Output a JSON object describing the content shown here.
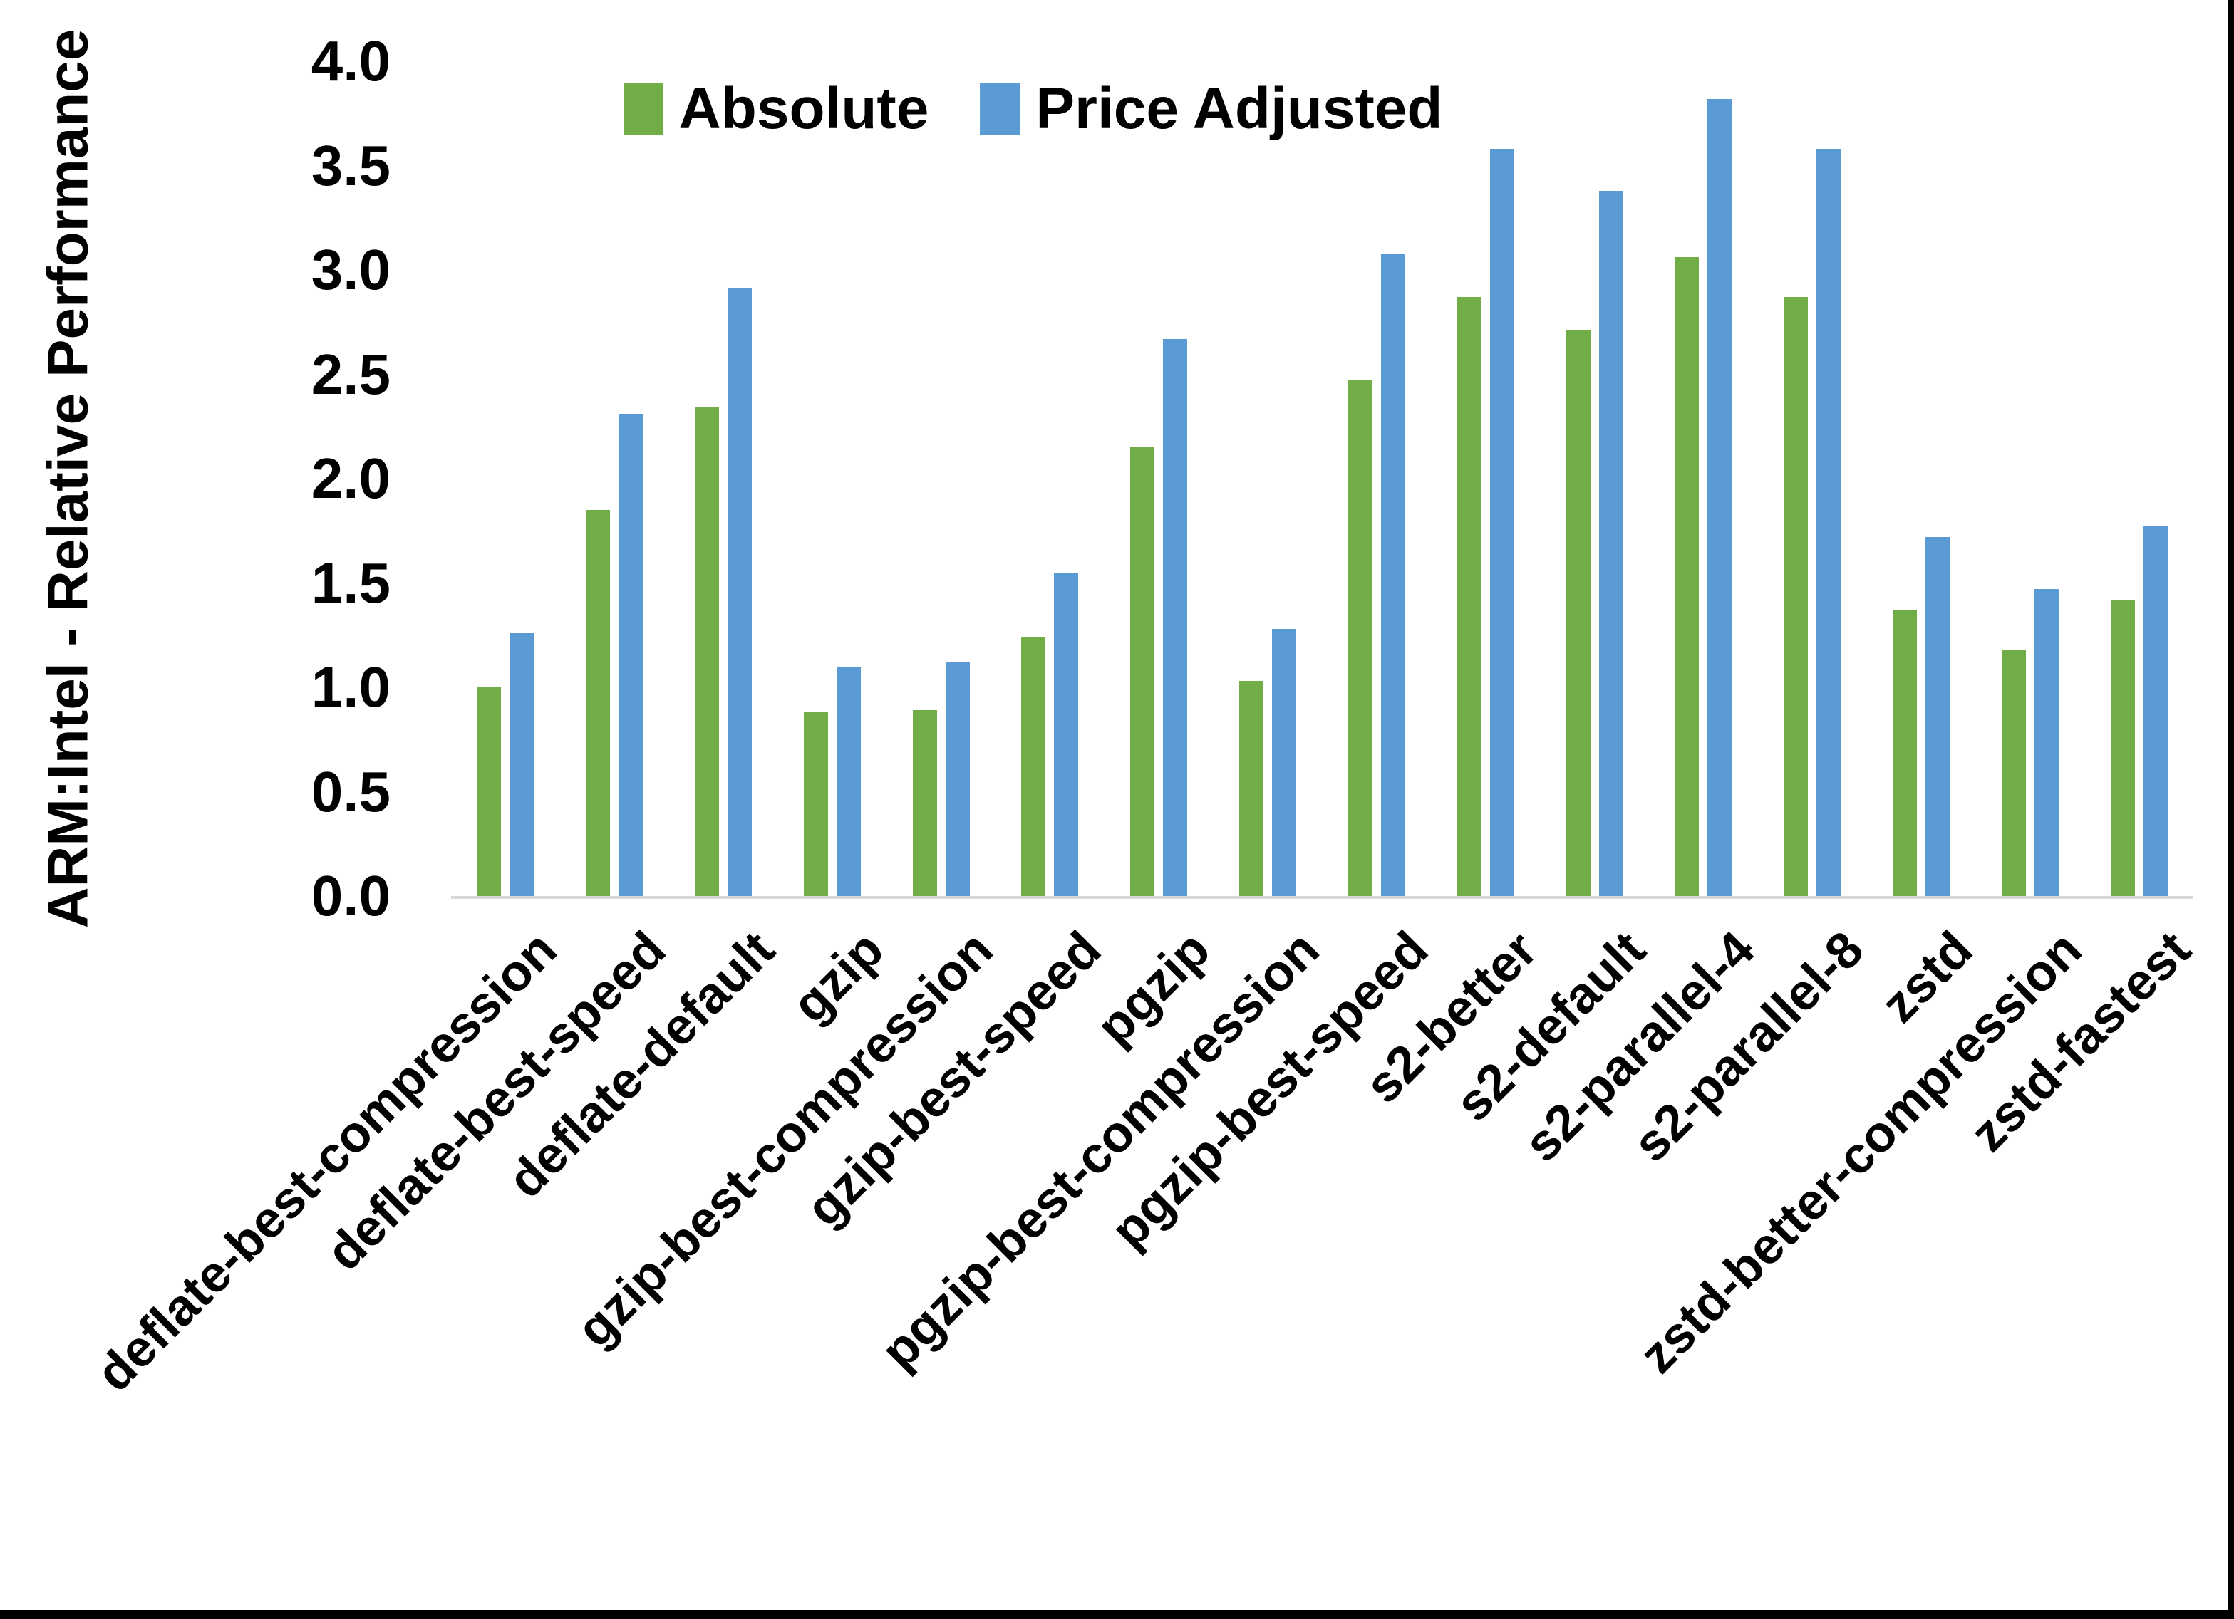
{
  "chart_data": {
    "type": "bar",
    "title": "",
    "ylabel": "ARM:Intel - Relative Performance",
    "xlabel": "",
    "ylim": [
      0,
      4
    ],
    "ytick_step": 0.5,
    "yticks": [
      4.0,
      3.5,
      3.0,
      2.5,
      2.0,
      1.5,
      1.0,
      0.5,
      0.0
    ],
    "grid": false,
    "legend_position": "top-center",
    "categories": [
      "deflate-best-compression",
      "deflate-best-speed",
      "deflate-default",
      "gzip",
      "gzip-best-compression",
      "gzip-best-speed",
      "pgzip",
      "pgzip-best-compression",
      "pgzip-best-speed",
      "s2-better",
      "s2-default",
      "s2-parallel-4",
      "s2-parallel-8",
      "zstd",
      "zstd-better-compression",
      "zstd-fastest"
    ],
    "series": [
      {
        "name": "Absolute",
        "color": "#70AD47",
        "values": [
          1.0,
          1.85,
          2.34,
          0.88,
          0.89,
          1.24,
          2.15,
          1.03,
          2.47,
          2.87,
          2.71,
          3.06,
          2.87,
          1.37,
          1.18,
          1.42
        ]
      },
      {
        "name": "Price Adjusted",
        "color": "#5B9BD5",
        "values": [
          1.26,
          2.31,
          2.91,
          1.1,
          1.12,
          1.55,
          2.67,
          1.28,
          3.08,
          3.58,
          3.38,
          3.82,
          3.58,
          1.72,
          1.47,
          1.77
        ]
      }
    ],
    "axis_line_color": "#D9D9D9",
    "text_color": "#000000",
    "background": "#FFFFFF",
    "frame_color": "#000000"
  }
}
